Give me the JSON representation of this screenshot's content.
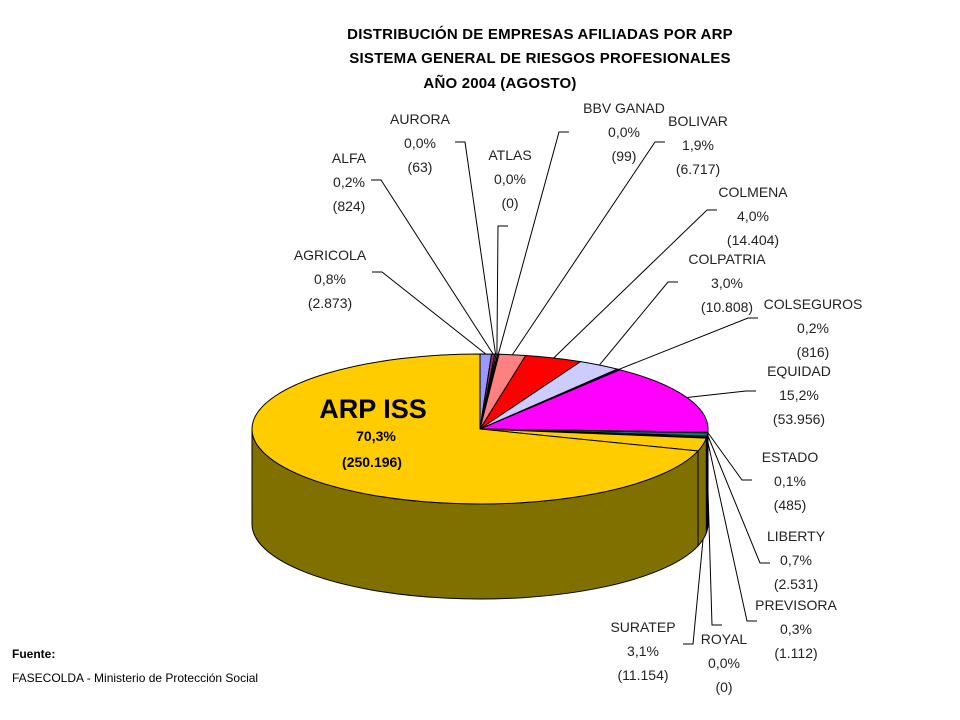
{
  "chart_data": {
    "type": "pie",
    "title_lines": [
      "DISTRIBUCIÓN DE EMPRESAS AFILIADAS POR ARP",
      "SISTEMA GENERAL DE RIESGOS PROFESIONALES",
      "AÑO 2004 (AGOSTO)"
    ],
    "slices": [
      {
        "name": "ARP ISS",
        "pct_label": "70,3%",
        "count_label": "(250.196)",
        "value": 250196,
        "color": "#FFCC00",
        "side": "#807000"
      },
      {
        "name": "AGRICOLA",
        "pct_label": "0,8%",
        "count_label": "(2.873)",
        "value": 2873,
        "color": "#9999FF",
        "side": "#4D4D80"
      },
      {
        "name": "ALFA",
        "pct_label": "0,2%",
        "count_label": "(824)",
        "value": 824,
        "color": "#993366",
        "side": "#4D1A33"
      },
      {
        "name": "AURORA",
        "pct_label": "0,0%",
        "count_label": "(63)",
        "value": 63,
        "color": "#FFFFCC",
        "side": "#808066"
      },
      {
        "name": "ATLAS",
        "pct_label": "0,0%",
        "count_label": "(0)",
        "value": 0,
        "color": "#CCFFFF",
        "side": "#668080"
      },
      {
        "name": "BBV GANAD",
        "pct_label": "0,0%",
        "count_label": "(99)",
        "value": 99,
        "color": "#660066",
        "side": "#330033"
      },
      {
        "name": "BOLIVAR",
        "pct_label": "1,9%",
        "count_label": "(6.717)",
        "value": 6717,
        "color": "#FF8080",
        "side": "#804040"
      },
      {
        "name": "COLMENA",
        "pct_label": "4,0%",
        "count_label": "(14.404)",
        "value": 14404,
        "color": "#FF0000",
        "side": "#800000"
      },
      {
        "name": "COLPATRIA",
        "pct_label": "3,0%",
        "count_label": "(10.808)",
        "value": 10808,
        "color": "#CCCCFF",
        "side": "#666680"
      },
      {
        "name": "COLSEGUROS",
        "pct_label": "0,2%",
        "count_label": "(816)",
        "value": 816,
        "color": "#000080",
        "side": "#000040"
      },
      {
        "name": "EQUIDAD",
        "pct_label": "15,2%",
        "count_label": "(53.956)",
        "value": 53956,
        "color": "#FF00FF",
        "side": "#800080"
      },
      {
        "name": "ESTADO",
        "pct_label": "0,1%",
        "count_label": "(485)",
        "value": 485,
        "color": "#00CCFF",
        "side": "#006680"
      },
      {
        "name": "LIBERTY",
        "pct_label": "0,7%",
        "count_label": "(2.531)",
        "value": 2531,
        "color": "#008080",
        "side": "#004040"
      },
      {
        "name": "PREVISORA",
        "pct_label": "0,3%",
        "count_label": "(1.112)",
        "value": 1112,
        "color": "#003333",
        "side": "#001A1A"
      },
      {
        "name": "ROYAL",
        "pct_label": "0,0%",
        "count_label": "(0)",
        "value": 0,
        "color": "#339966",
        "side": "#1A4D33"
      },
      {
        "name": "SURATEP",
        "pct_label": "3,1%",
        "count_label": "(11.154)",
        "value": 11154,
        "color": "#FFCC00",
        "side": "#807000"
      }
    ]
  },
  "source": {
    "heading": "Fuente:",
    "text": "FASECOLDA - Ministerio de Protección Social"
  }
}
